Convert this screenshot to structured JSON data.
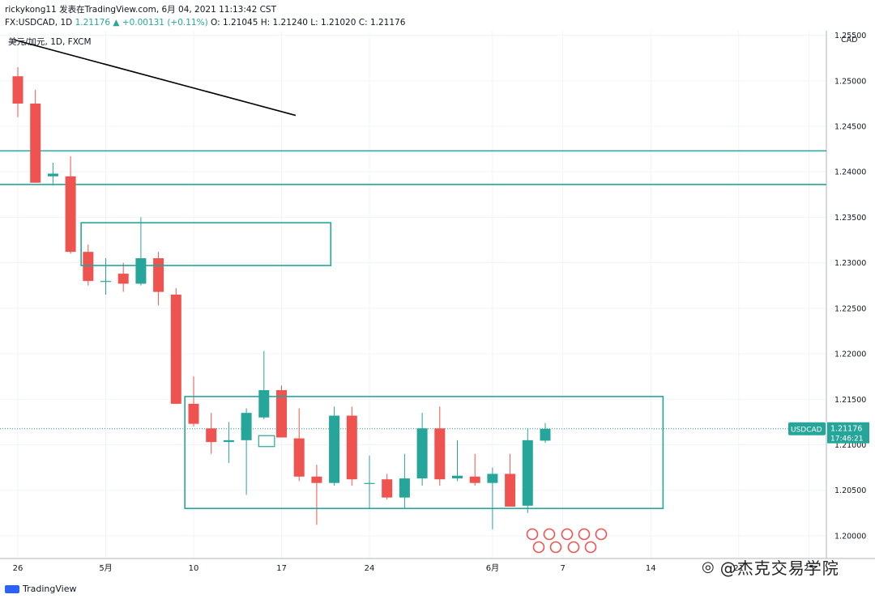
{
  "header": {
    "line1": "rickykong11 发表在TradingView.com, 6月 04, 2021 11:13:42 CST",
    "line2_symbol": "FX:USDCAD, 1D",
    "line2_price": "1.21176",
    "line2_change": "▲ +0.00131 (+0.11%)",
    "line2_ohlc": "O: 1.21045 H: 1.21240 L: 1.21020 C: 1.21176"
  },
  "symbol_label": "美元/加元, 1D, FXCM",
  "currency": "CAD",
  "footer": {
    "brand": "TradingView"
  },
  "brand_watermark": "@杰克交易学院",
  "colors": {
    "up": "#26a69a",
    "down": "#ef5350",
    "box": "#26a69a",
    "trendline": "#000000",
    "grid": "#f0f3fa"
  },
  "chart_data": {
    "type": "candlestick",
    "symbol": "USDCAD",
    "timeframe": "1D",
    "ylim": [
      1.195,
      1.255
    ],
    "y_ticks": [
      "1.25500",
      "1.25000",
      "1.24500",
      "1.24000",
      "1.23500",
      "1.23000",
      "1.22500",
      "1.22000",
      "1.21500",
      "1.21000",
      "1.20500",
      "1.20000"
    ],
    "x_ticks": [
      {
        "label": "26",
        "i": 0
      },
      {
        "label": "5月",
        "i": 5
      },
      {
        "label": "10",
        "i": 10
      },
      {
        "label": "17",
        "i": 15
      },
      {
        "label": "24",
        "i": 20
      },
      {
        "label": "6月",
        "i": 27
      },
      {
        "label": "7",
        "i": 31
      },
      {
        "label": "14",
        "i": 36
      },
      {
        "label": "21",
        "i": 41
      },
      {
        "label": "25",
        "i": 45
      }
    ],
    "last_price": {
      "label": "USDCAD",
      "price": "1.21176",
      "countdown": "17:46:21",
      "value": 1.21176
    },
    "candles": [
      {
        "o": 1.2505,
        "h": 1.2515,
        "l": 1.246,
        "c": 1.2475
      },
      {
        "o": 1.2475,
        "h": 1.249,
        "l": 1.2388,
        "c": 1.2388
      },
      {
        "o": 1.2395,
        "h": 1.241,
        "l": 1.2385,
        "c": 1.2398
      },
      {
        "o": 1.2395,
        "h": 1.2417,
        "l": 1.231,
        "c": 1.2312
      },
      {
        "o": 1.2312,
        "h": 1.232,
        "l": 1.2275,
        "c": 1.228
      },
      {
        "o": 1.228,
        "h": 1.2305,
        "l": 1.2265,
        "c": 1.228
      },
      {
        "o": 1.2288,
        "h": 1.23,
        "l": 1.2268,
        "c": 1.2277
      },
      {
        "o": 1.2277,
        "h": 1.235,
        "l": 1.2275,
        "c": 1.2305
      },
      {
        "o": 1.2305,
        "h": 1.2312,
        "l": 1.2253,
        "c": 1.2268
      },
      {
        "o": 1.2265,
        "h": 1.2272,
        "l": 1.2145,
        "c": 1.2145
      },
      {
        "o": 1.2145,
        "h": 1.2175,
        "l": 1.212,
        "c": 1.2123
      },
      {
        "o": 1.2118,
        "h": 1.2135,
        "l": 1.209,
        "c": 1.2103
      },
      {
        "o": 1.2103,
        "h": 1.2125,
        "l": 1.208,
        "c": 1.2105
      },
      {
        "o": 1.2105,
        "h": 1.214,
        "l": 1.2045,
        "c": 1.2135
      },
      {
        "o": 1.213,
        "h": 1.2203,
        "l": 1.2128,
        "c": 1.216
      },
      {
        "o": 1.216,
        "h": 1.2165,
        "l": 1.2108,
        "c": 1.2108
      },
      {
        "o": 1.2107,
        "h": 1.214,
        "l": 1.206,
        "c": 1.2065
      },
      {
        "o": 1.2065,
        "h": 1.2078,
        "l": 1.2012,
        "c": 1.2058
      },
      {
        "o": 1.2058,
        "h": 1.2142,
        "l": 1.2055,
        "c": 1.2132
      },
      {
        "o": 1.2132,
        "h": 1.2142,
        "l": 1.2055,
        "c": 1.2062
      },
      {
        "o": 1.2058,
        "h": 1.2088,
        "l": 1.203,
        "c": 1.2058
      },
      {
        "o": 1.2062,
        "h": 1.2068,
        "l": 1.204,
        "c": 1.2042
      },
      {
        "o": 1.2042,
        "h": 1.209,
        "l": 1.203,
        "c": 1.2063
      },
      {
        "o": 1.2063,
        "h": 1.2135,
        "l": 1.2055,
        "c": 1.2118
      },
      {
        "o": 1.2118,
        "h": 1.2142,
        "l": 1.2055,
        "c": 1.2062
      },
      {
        "o": 1.2063,
        "h": 1.2105,
        "l": 1.206,
        "c": 1.2066
      },
      {
        "o": 1.2065,
        "h": 1.209,
        "l": 1.2055,
        "c": 1.2058
      },
      {
        "o": 1.2058,
        "h": 1.2075,
        "l": 1.2007,
        "c": 1.2068
      },
      {
        "o": 1.2068,
        "h": 1.209,
        "l": 1.2032,
        "c": 1.2032
      },
      {
        "o": 1.2033,
        "h": 1.2118,
        "l": 1.2025,
        "c": 1.2105
      },
      {
        "o": 1.21045,
        "h": 1.2124,
        "l": 1.2102,
        "c": 1.21176
      }
    ],
    "horizontal_lines": [
      1.2423,
      1.2386
    ],
    "boxes": [
      {
        "i0": 3.6,
        "i1": 17.8,
        "y0": 1.2297,
        "y1": 1.2344
      },
      {
        "i0": 9.5,
        "i1": 36.7,
        "y0": 1.203,
        "y1": 1.2153
      }
    ],
    "trendline": {
      "i0": -0.2,
      "y0": 1.2545,
      "i1": 15.8,
      "y1": 1.2462
    },
    "small_box": {
      "i0": 13.7,
      "i1": 14.6,
      "y0": 1.2098,
      "y1": 1.211
    }
  }
}
